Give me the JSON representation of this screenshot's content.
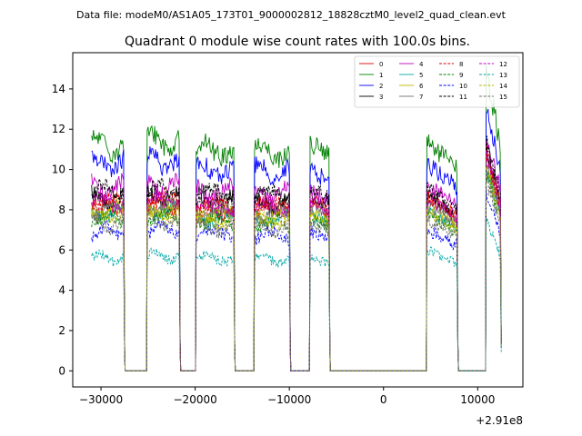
{
  "chart_data": {
    "type": "line",
    "suptitle": "Data file: modeM0/AS1A05_173T01_9000002812_18828cztM0_level2_quad_clean.evt",
    "title": "Quadrant 0 module wise count rates with 100.0s bins.",
    "xlabel": "",
    "ylabel": "",
    "x_offset_label": "+2.91e8",
    "xlim": [
      -33000,
      14800
    ],
    "ylim": [
      -0.8,
      15.8
    ],
    "xticks": [
      -30000,
      -20000,
      -10000,
      0,
      10000
    ],
    "xtick_labels": [
      "−30000",
      "−20000",
      "−10000",
      "0",
      "10000"
    ],
    "yticks": [
      0,
      2,
      4,
      6,
      8,
      10,
      12,
      14
    ],
    "ytick_labels": [
      "0",
      "2",
      "4",
      "6",
      "8",
      "10",
      "12",
      "14"
    ],
    "grid": false,
    "legend_position": "top-right",
    "segments": [
      {
        "start": -31000,
        "end": -27500
      },
      {
        "start": -25100,
        "end": -21600
      },
      {
        "start": -19900,
        "end": -15800
      },
      {
        "start": -13700,
        "end": -9900
      },
      {
        "start": -7800,
        "end": -5700
      },
      {
        "start": 4600,
        "end": 7900
      },
      {
        "start": 10900,
        "end": 12500
      }
    ],
    "gap_level": 0,
    "series": [
      {
        "name": "0",
        "color": "#e00000",
        "dash": "solid",
        "levels": [
          8.2,
          8.3,
          8.0,
          8.1,
          8.2,
          8.4,
          9.6
        ]
      },
      {
        "name": "1",
        "color": "#008000",
        "dash": "solid",
        "levels": [
          11.2,
          11.4,
          11.0,
          10.9,
          11.1,
          11.0,
          13.2
        ]
      },
      {
        "name": "2",
        "color": "#0000ff",
        "dash": "solid",
        "levels": [
          10.3,
          10.4,
          10.0,
          9.9,
          9.8,
          10.0,
          11.6
        ]
      },
      {
        "name": "3",
        "color": "#000000",
        "dash": "solid",
        "levels": [
          8.6,
          8.7,
          8.5,
          8.4,
          8.6,
          8.5,
          10.0
        ]
      },
      {
        "name": "4",
        "color": "#c000c0",
        "dash": "solid",
        "levels": [
          9.1,
          9.2,
          8.9,
          8.9,
          8.8,
          9.0,
          10.4
        ]
      },
      {
        "name": "5",
        "color": "#00a8a8",
        "dash": "solid",
        "levels": [
          7.8,
          7.9,
          7.6,
          7.6,
          7.6,
          7.8,
          9.0
        ]
      },
      {
        "name": "6",
        "color": "#b8b800",
        "dash": "solid",
        "levels": [
          7.9,
          8.0,
          7.7,
          7.7,
          7.8,
          7.9,
          9.3
        ]
      },
      {
        "name": "7",
        "color": "#707070",
        "dash": "solid",
        "levels": [
          8.1,
          8.2,
          7.9,
          7.9,
          8.0,
          8.0,
          9.3
        ]
      },
      {
        "name": "8",
        "color": "#e00000",
        "dash": "dashed",
        "levels": [
          8.4,
          8.5,
          8.2,
          8.2,
          8.3,
          8.4,
          9.7
        ]
      },
      {
        "name": "9",
        "color": "#008000",
        "dash": "dashed",
        "levels": [
          7.5,
          7.6,
          7.4,
          7.3,
          7.4,
          7.5,
          8.8
        ]
      },
      {
        "name": "10",
        "color": "#0000ff",
        "dash": "dashed",
        "levels": [
          6.9,
          7.0,
          6.8,
          6.7,
          6.8,
          6.8,
          8.0
        ]
      },
      {
        "name": "11",
        "color": "#000000",
        "dash": "dashed",
        "levels": [
          9.0,
          9.0,
          8.8,
          8.8,
          8.9,
          8.8,
          10.2
        ]
      },
      {
        "name": "12",
        "color": "#c000c0",
        "dash": "dashed",
        "levels": [
          8.3,
          8.4,
          8.1,
          8.1,
          8.2,
          8.3,
          9.6
        ]
      },
      {
        "name": "13",
        "color": "#00a8a8",
        "dash": "dashed",
        "levels": [
          5.6,
          5.7,
          5.6,
          5.5,
          5.5,
          5.8,
          6.7
        ]
      },
      {
        "name": "14",
        "color": "#b8b800",
        "dash": "dashed",
        "levels": [
          7.7,
          7.8,
          7.5,
          7.5,
          7.6,
          7.7,
          9.0
        ]
      },
      {
        "name": "15",
        "color": "#707070",
        "dash": "dashed",
        "levels": [
          7.3,
          7.4,
          7.1,
          7.1,
          7.2,
          7.3,
          8.5
        ]
      }
    ]
  }
}
